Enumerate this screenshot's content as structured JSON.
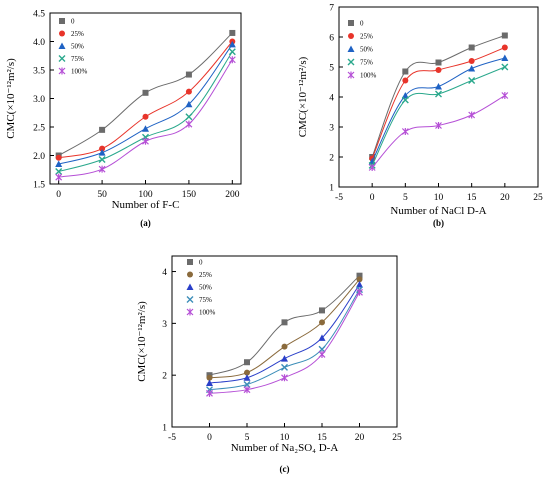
{
  "colors": {
    "0": "#6b6b6b",
    "25%": "#e8342a",
    "50%": "#1f62c4",
    "75%": "#2aa88c",
    "100%": "#b54fd6"
  },
  "colors_c": {
    "0": "#6b6b6b",
    "25%": "#8a6a3c",
    "50%": "#2a3fc9",
    "75%": "#3b8db8",
    "100%": "#b54fd6"
  },
  "chart_data": [
    {
      "type": "scatter",
      "panel_label": "(a)",
      "xlabel": "Number of F-C",
      "ylabel": "CMC(×10⁻¹²m²/s)",
      "xlim": [
        -10,
        210
      ],
      "ylim": [
        1.5,
        4.5
      ],
      "xticks": [
        0,
        50,
        100,
        150,
        200
      ],
      "yticks": [
        1.5,
        2.0,
        2.5,
        3.0,
        3.5,
        4.0,
        4.5
      ],
      "xtick_labels": [
        "0",
        "50",
        "100",
        "150",
        "200"
      ],
      "ytick_labels": [
        "1.5",
        "2.0",
        "2.5",
        "3.0",
        "3.5",
        "4.0",
        "4.5"
      ],
      "legend_position": "top-left",
      "series": [
        {
          "name": "0",
          "marker": "square",
          "x": [
            0,
            50,
            100,
            150,
            200
          ],
          "y": [
            2.0,
            2.45,
            3.1,
            3.42,
            4.15
          ]
        },
        {
          "name": "25%",
          "marker": "circle",
          "x": [
            0,
            50,
            100,
            150,
            200
          ],
          "y": [
            1.96,
            2.12,
            2.68,
            3.12,
            4.0
          ]
        },
        {
          "name": "50%",
          "marker": "triangle",
          "x": [
            0,
            50,
            100,
            150,
            200
          ],
          "y": [
            1.85,
            2.05,
            2.47,
            2.9,
            3.95
          ]
        },
        {
          "name": "75%",
          "marker": "x",
          "x": [
            0,
            50,
            100,
            150,
            200
          ],
          "y": [
            1.72,
            1.93,
            2.32,
            2.68,
            3.82
          ]
        },
        {
          "name": "100%",
          "marker": "star",
          "x": [
            0,
            50,
            100,
            150,
            200
          ],
          "y": [
            1.62,
            1.76,
            2.25,
            2.55,
            3.68
          ]
        }
      ]
    },
    {
      "type": "scatter",
      "panel_label": "(b)",
      "xlabel": "Number of NaCl D-A",
      "ylabel": "CMC(×10⁻¹²m²/s)",
      "xlim": [
        -5,
        25
      ],
      "ylim": [
        1,
        7
      ],
      "xticks": [
        -5,
        0,
        5,
        10,
        15,
        20,
        25
      ],
      "yticks": [
        1,
        2,
        3,
        4,
        5,
        6,
        7
      ],
      "xtick_labels": [
        "-5",
        "0",
        "5",
        "10",
        "15",
        "20",
        "25"
      ],
      "ytick_labels": [
        "1",
        "2",
        "3",
        "4",
        "5",
        "6",
        "7"
      ],
      "legend_position": "top-left",
      "series": [
        {
          "name": "0",
          "marker": "square",
          "x": [
            0,
            5,
            10,
            15,
            20
          ],
          "y": [
            2.0,
            4.85,
            5.15,
            5.65,
            6.05
          ]
        },
        {
          "name": "25%",
          "marker": "circle",
          "x": [
            0,
            5,
            10,
            15,
            20
          ],
          "y": [
            1.95,
            4.55,
            4.9,
            5.2,
            5.65
          ]
        },
        {
          "name": "50%",
          "marker": "triangle",
          "x": [
            0,
            5,
            10,
            15,
            20
          ],
          "y": [
            1.85,
            4.05,
            4.35,
            4.95,
            5.3
          ]
        },
        {
          "name": "75%",
          "marker": "x",
          "x": [
            0,
            5,
            10,
            15,
            20
          ],
          "y": [
            1.72,
            3.9,
            4.1,
            4.55,
            5.0
          ]
        },
        {
          "name": "100%",
          "marker": "star",
          "x": [
            0,
            5,
            10,
            15,
            20
          ],
          "y": [
            1.65,
            2.85,
            3.05,
            3.4,
            4.05
          ]
        }
      ]
    },
    {
      "type": "scatter",
      "panel_label": "(c)",
      "xlabel": "Number of Na₂SO₄ D-A",
      "ylabel": "CMC(×10⁻¹²m²/s)",
      "xlim": [
        -5,
        25
      ],
      "ylim": [
        1,
        4.3
      ],
      "xticks": [
        -5,
        0,
        5,
        10,
        15,
        20,
        25
      ],
      "yticks": [
        1,
        2,
        3,
        4
      ],
      "xtick_labels": [
        "-5",
        "0",
        "5",
        "10",
        "15",
        "20",
        "25"
      ],
      "ytick_labels": [
        "1",
        "2",
        "3",
        "4"
      ],
      "legend_position": "top-left",
      "series": [
        {
          "name": "0",
          "marker": "square",
          "x": [
            0,
            5,
            10,
            15,
            20
          ],
          "y": [
            2.0,
            2.25,
            3.02,
            3.25,
            3.92
          ]
        },
        {
          "name": "25%",
          "marker": "circle",
          "x": [
            0,
            5,
            10,
            15,
            20
          ],
          "y": [
            1.95,
            2.05,
            2.55,
            3.02,
            3.85
          ]
        },
        {
          "name": "50%",
          "marker": "triangle",
          "x": [
            0,
            5,
            10,
            15,
            20
          ],
          "y": [
            1.85,
            1.95,
            2.32,
            2.72,
            3.75
          ]
        },
        {
          "name": "75%",
          "marker": "x",
          "x": [
            0,
            5,
            10,
            15,
            20
          ],
          "y": [
            1.72,
            1.82,
            2.15,
            2.5,
            3.65
          ]
        },
        {
          "name": "100%",
          "marker": "star",
          "x": [
            0,
            5,
            10,
            15,
            20
          ],
          "y": [
            1.65,
            1.72,
            1.95,
            2.4,
            3.6
          ]
        }
      ]
    }
  ]
}
